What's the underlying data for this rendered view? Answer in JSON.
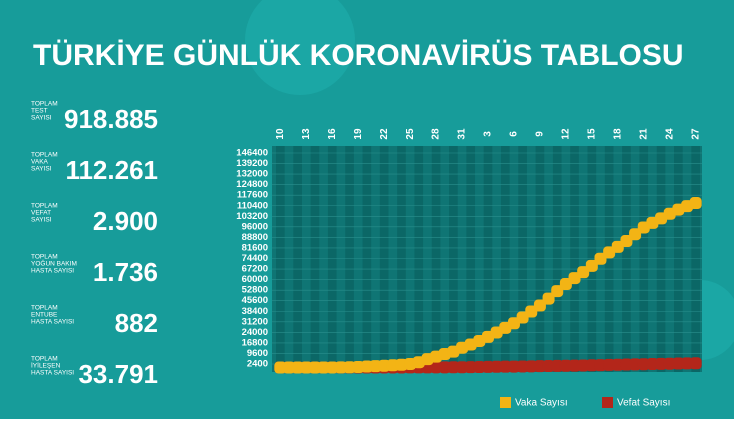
{
  "title": "TÜRKİYE GÜNLÜK KORONAVİRÜS TABLOSU",
  "stats": [
    {
      "label": [
        "TOPLAM",
        "TEST",
        "SAYISI"
      ],
      "value": "918.885"
    },
    {
      "label": [
        "TOPLAM",
        "VAKA",
        "SAYISI"
      ],
      "value": "112.261"
    },
    {
      "label": [
        "TOPLAM",
        "VEFAT",
        "SAYISI"
      ],
      "value": "2.900"
    },
    {
      "label": [
        "TOPLAM",
        "YOĞUN BAKIM",
        "HASTA SAYISI"
      ],
      "value": "1.736"
    },
    {
      "label": [
        "TOPLAM",
        "ENTUBE",
        "HASTA SAYISI"
      ],
      "value": "882"
    },
    {
      "label": [
        "TOPLAM",
        "İYİLEŞEN",
        "HASTA SAYISI"
      ],
      "value": "33.791"
    }
  ],
  "chart_data": {
    "type": "dot-line",
    "categories": [
      "10",
      null,
      null,
      "13",
      null,
      null,
      "16",
      null,
      null,
      "19",
      null,
      null,
      "22",
      null,
      null,
      "25",
      null,
      null,
      "28",
      null,
      null,
      "31",
      null,
      null,
      "3",
      null,
      null,
      "6",
      null,
      null,
      "9",
      null,
      null,
      "12",
      null,
      null,
      "15",
      null,
      null,
      "18",
      null,
      null,
      "21",
      null,
      null,
      "24",
      null,
      null,
      "27"
    ],
    "series": [
      {
        "name": "Vaka Sayısı",
        "color": "#f3b415",
        "values": [
          0,
          1,
          1,
          5,
          6,
          18,
          47,
          98,
          191,
          359,
          670,
          947,
          1236,
          1529,
          1872,
          2433,
          3629,
          5698,
          7402,
          9217,
          10827,
          13531,
          15679,
          18135,
          20921,
          23934,
          27069,
          30217,
          34109,
          38226,
          42282,
          47029,
          52167,
          56956,
          61049,
          65111,
          69392,
          74193,
          78546,
          82329,
          86306,
          90980,
          95591,
          98674,
          101790,
          104912,
          107773,
          110130,
          112261
        ]
      },
      {
        "name": "Vefat Sayısı",
        "color": "#b3261a",
        "values": [
          0,
          0,
          0,
          0,
          0,
          0,
          0,
          1,
          3,
          4,
          9,
          21,
          30,
          37,
          44,
          59,
          75,
          92,
          108,
          131,
          168,
          214,
          277,
          356,
          425,
          501,
          574,
          649,
          725,
          812,
          908,
          1006,
          1101,
          1198,
          1296,
          1403,
          1518,
          1643,
          1769,
          1890,
          2017,
          2140,
          2259,
          2376,
          2491,
          2600,
          2706,
          2805,
          2900
        ]
      }
    ],
    "ylim": [
      2400,
      146400
    ],
    "yticks": [
      2400,
      9600,
      16800,
      24000,
      31200,
      38400,
      45600,
      52800,
      60000,
      67200,
      74400,
      81600,
      88800,
      96000,
      103200,
      110400,
      117600,
      124800,
      132000,
      139200,
      146400
    ],
    "grid": true
  }
}
